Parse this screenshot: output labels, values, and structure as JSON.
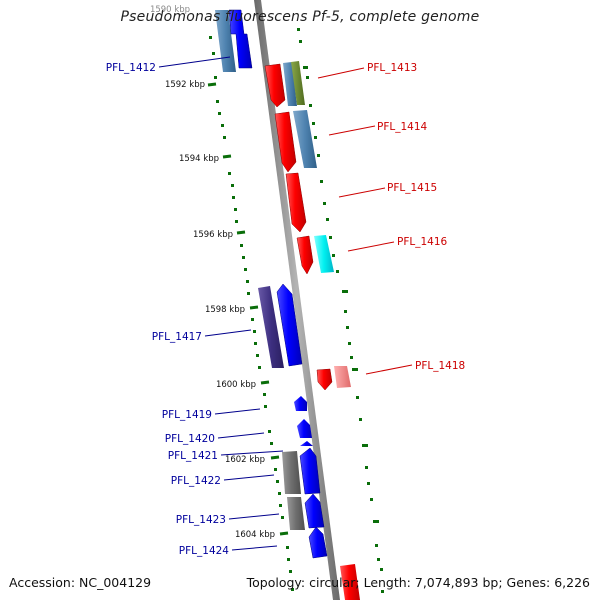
{
  "title": "Pseudomonas fluorescens Pf-5, complete genome",
  "accession_text": "Accession: NC_004129",
  "summary_text": "Topology: circular; Length: 7,074,893 bp; Genes: 6,226",
  "colors": {
    "backbone": "#909090",
    "forward_cds": "#0000ff",
    "reverse_cds": "#ff0000",
    "tick": "#006400",
    "left_label": "#00009c",
    "right_label": "#cc0000"
  },
  "scale_labels": [
    "1590 kbp",
    "1592 kbp",
    "1594 kbp",
    "1596 kbp",
    "1598 kbp",
    "1600 kbp",
    "1602 kbp",
    "1604 kbp"
  ],
  "left_gene_labels": [
    "PFL_1412",
    "PFL_1417",
    "PFL_1419",
    "PFL_1420",
    "PFL_1421",
    "PFL_1422",
    "PFL_1423",
    "PFL_1424"
  ],
  "right_gene_labels": [
    "PFL_1413",
    "PFL_1414",
    "PFL_1415",
    "PFL_1416",
    "PFL_1418"
  ]
}
